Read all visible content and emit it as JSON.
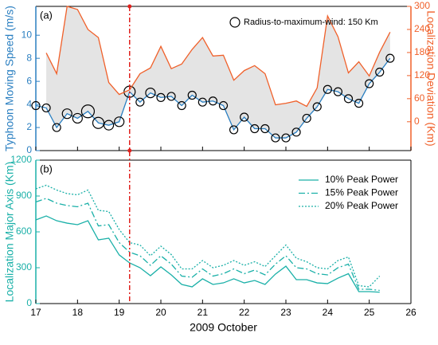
{
  "chart_data": [
    {
      "type": "line",
      "panel_label": "(a)",
      "ylabel": "Typhoon Moving Speed (m/s)",
      "y2label": "Localization Deviation (Km)",
      "size_legend": "Radius-to-maximum-wind: 150 Km",
      "vline": 19.25,
      "vline_color": "#e0201c",
      "fill_color": "#e4e4e4",
      "xlim": [
        17,
        26
      ],
      "xticks": [
        17,
        18,
        19,
        20,
        21,
        22,
        23,
        24,
        25,
        26
      ],
      "ylim": [
        0,
        12.5
      ],
      "yticks": [
        0,
        2,
        4,
        6,
        8,
        10
      ],
      "y2lim": [
        -75,
        300
      ],
      "y2ticks": [
        0,
        60,
        120,
        180,
        240,
        300
      ],
      "x": [
        17,
        17.25,
        17.5,
        17.75,
        18,
        18.25,
        18.5,
        18.75,
        19,
        19.25,
        19.5,
        19.75,
        20,
        20.25,
        20.5,
        20.75,
        21,
        21.25,
        21.5,
        21.75,
        22,
        22.25,
        22.5,
        22.75,
        23,
        23.25,
        23.5,
        23.75,
        24,
        24.25,
        24.5,
        24.75,
        25,
        25.25,
        25.5
      ],
      "series": [
        {
          "color": "#2a7fc1",
          "axis": "y",
          "values": [
            3.9,
            3.7,
            2.0,
            3.2,
            2.8,
            3.4,
            2.4,
            2.2,
            2.5,
            5.1,
            4.2,
            5.0,
            4.6,
            4.7,
            3.9,
            4.8,
            4.2,
            4.3,
            3.9,
            1.8,
            2.9,
            1.9,
            1.9,
            1.1,
            1.1,
            1.6,
            2.8,
            3.8,
            5.3,
            5.1,
            4.5,
            4.1,
            5.8,
            6.8,
            8.0
          ],
          "sizes": [
            125,
            125,
            125,
            150,
            150,
            200,
            175,
            150,
            150,
            175,
            125,
            150,
            125,
            125,
            125,
            125,
            125,
            125,
            125,
            125,
            125,
            125,
            125,
            125,
            125,
            125,
            125,
            125,
            125,
            125,
            125,
            125,
            125,
            125,
            125
          ]
        },
        {
          "color": "#f0602a",
          "axis": "y2",
          "values": [
            null,
            179,
            125,
            300,
            292,
            240,
            219,
            102,
            71,
            83,
            125,
            140,
            196,
            138,
            150,
            188,
            219,
            171,
            173,
            108,
            133,
            146,
            125,
            44,
            48,
            54,
            40,
            88,
            275,
            221,
            127,
            156,
            119,
            181,
            233
          ]
        }
      ]
    },
    {
      "type": "line",
      "panel_label": "(b)",
      "ylabel": "Localization Major Axis (Km)",
      "xlabel": "2009 October",
      "axis_color": "#1ab0a8",
      "xlim": [
        17,
        26
      ],
      "xticks": [
        17,
        18,
        19,
        20,
        21,
        22,
        23,
        24,
        25,
        26
      ],
      "ylim": [
        0,
        1200
      ],
      "yticks": [
        0,
        300,
        600,
        900,
        1200
      ],
      "x": [
        17,
        17.25,
        17.5,
        17.75,
        18,
        18.25,
        18.5,
        18.75,
        19,
        19.25,
        19.5,
        19.75,
        20,
        20.25,
        20.5,
        20.75,
        21,
        21.25,
        21.5,
        21.75,
        22,
        22.25,
        22.5,
        22.75,
        23,
        23.25,
        23.5,
        23.75,
        24,
        24.25,
        24.5,
        24.75,
        25,
        25.25
      ],
      "series": [
        {
          "name": "10% Peak Power",
          "color": "#1ab0a8",
          "dash": "solid",
          "values": [
            700,
            733,
            693,
            673,
            660,
            693,
            533,
            547,
            407,
            340,
            300,
            233,
            307,
            240,
            160,
            140,
            207,
            160,
            173,
            207,
            173,
            193,
            160,
            247,
            313,
            200,
            200,
            173,
            167,
            213,
            250,
            100,
            100,
            95
          ]
        },
        {
          "name": "15% Peak Power",
          "color": "#1ab0a8",
          "dash": "dashdot",
          "values": [
            850,
            880,
            840,
            820,
            810,
            840,
            650,
            660,
            510,
            430,
            400,
            320,
            400,
            330,
            230,
            220,
            290,
            230,
            250,
            290,
            250,
            280,
            240,
            330,
            400,
            300,
            290,
            250,
            240,
            300,
            330,
            120,
            120,
            110
          ]
        },
        {
          "name": "20% Peak Power",
          "color": "#1ab0a8",
          "dash": "dotted",
          "values": [
            960,
            990,
            950,
            920,
            910,
            950,
            780,
            770,
            620,
            510,
            490,
            400,
            480,
            410,
            290,
            290,
            360,
            300,
            320,
            360,
            320,
            350,
            310,
            400,
            490,
            380,
            350,
            300,
            290,
            360,
            390,
            150,
            140,
            230
          ]
        }
      ]
    }
  ]
}
